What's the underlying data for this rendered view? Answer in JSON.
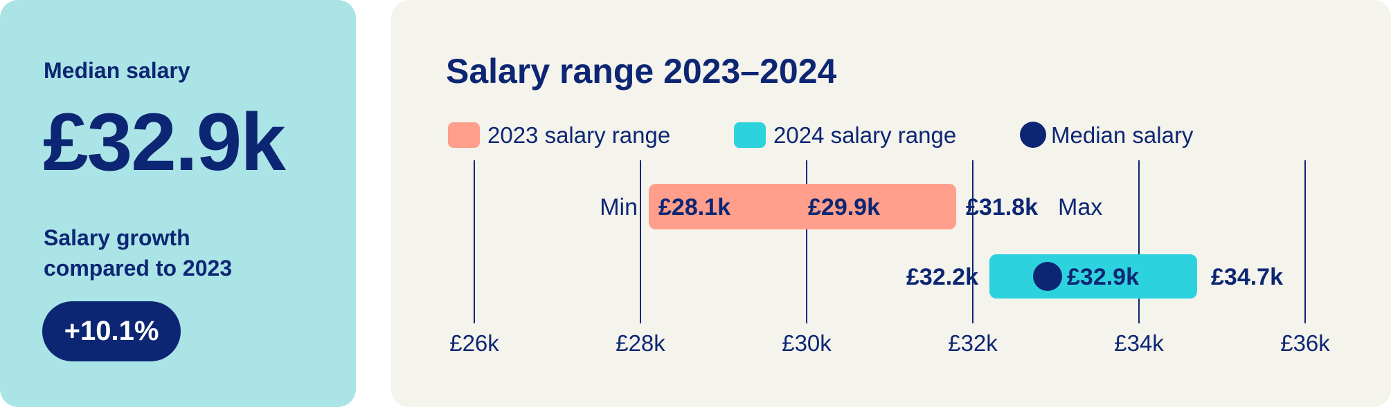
{
  "summary": {
    "median_label": "Median salary",
    "median_value": "£32.9k",
    "growth_label_line1": "Salary growth",
    "growth_label_line2": "compared to 2023",
    "growth_value": "+10.1%"
  },
  "colors": {
    "navy": "#0d2674",
    "range_2023": "#ff9e8a",
    "range_2024": "#2cd3df",
    "left_card": "#abe4e6",
    "right_card": "#f4f3ec"
  },
  "chart_data": {
    "type": "range-bar",
    "title": "Salary range 2023–2024",
    "legend": [
      {
        "label": "2023 salary range",
        "color": "#ff9e8a",
        "shape": "square"
      },
      {
        "label": "2024 salary range",
        "color": "#2cd3df",
        "shape": "square"
      },
      {
        "label": "Median salary",
        "color": "#0d2674",
        "shape": "circle"
      }
    ],
    "legend_placement": "top-left",
    "xlim": [
      26,
      36
    ],
    "x_ticks": [
      26,
      28,
      30,
      32,
      34,
      36
    ],
    "x_tick_labels": [
      "£26k",
      "£28k",
      "£30k",
      "£32k",
      "£34k",
      "£36k"
    ],
    "grid": true,
    "min_label": "Min",
    "max_label": "Max",
    "series": [
      {
        "year": "2023",
        "min": 28.1,
        "median": 29.9,
        "max": 31.8,
        "min_label": "£28.1k",
        "median_label": "£29.9k",
        "max_label": "£31.8k",
        "show_median_dot": false
      },
      {
        "year": "2024",
        "min": 32.2,
        "median": 32.9,
        "max": 34.7,
        "min_label": "£32.2k",
        "median_label": "£32.9k",
        "max_label": "£34.7k",
        "show_median_dot": true
      }
    ]
  }
}
